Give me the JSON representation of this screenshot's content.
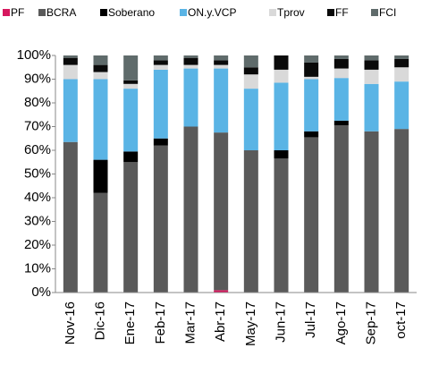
{
  "chart_data": {
    "type": "stacked_bar",
    "categories": [
      "Nov-16",
      "Dic-16",
      "Ene-17",
      "Feb-17",
      "Mar-17",
      "Abr-17",
      "May-17",
      "Jun-17",
      "Jul-17",
      "Ago-17",
      "Sep-17",
      "oct-17"
    ],
    "series": [
      {
        "name": "PF",
        "color": "#d6185e",
        "values": [
          0,
          0,
          0,
          0,
          0,
          1,
          0,
          0,
          0,
          0,
          0,
          0
        ]
      },
      {
        "name": "BCRA",
        "color": "#5a5a5a",
        "values": [
          63.5,
          42,
          55,
          62,
          70,
          66.5,
          60,
          56.5,
          65.5,
          70.5,
          68,
          69
        ]
      },
      {
        "name": "Soberano",
        "color": "#000000",
        "values": [
          0,
          14,
          4.5,
          3,
          0,
          0,
          0,
          3.5,
          2.5,
          2,
          0,
          0
        ]
      },
      {
        "name": "ON.y.VCP",
        "color": "#5ab4e5",
        "values": [
          26.5,
          34,
          26.5,
          29,
          24.5,
          27,
          26,
          28.5,
          22,
          18,
          20,
          20
        ]
      },
      {
        "name": "Tprov",
        "color": "#d9d9d9",
        "values": [
          6,
          3,
          2,
          2,
          1.5,
          1.5,
          6,
          5.5,
          1,
          4,
          6,
          6
        ]
      },
      {
        "name": "FF",
        "color": "#0a0a0a",
        "values": [
          3,
          3,
          1.5,
          2,
          3,
          2,
          3,
          6,
          6,
          4,
          4,
          3.5
        ]
      },
      {
        "name": "FCI",
        "color": "#5f6b6b",
        "values": [
          1,
          4,
          10.5,
          2,
          1,
          2,
          5,
          0,
          3,
          1.5,
          2,
          1.5
        ]
      }
    ],
    "ylim": [
      0,
      100
    ],
    "yticks": [
      {
        "value": 0,
        "label": "0%"
      },
      {
        "value": 10,
        "label": "10%"
      },
      {
        "value": 20,
        "label": "20%"
      },
      {
        "value": 30,
        "label": "30%"
      },
      {
        "value": 40,
        "label": "40%"
      },
      {
        "value": 50,
        "label": "50%"
      },
      {
        "value": 60,
        "label": "60%"
      },
      {
        "value": 70,
        "label": "70%"
      },
      {
        "value": 80,
        "label": "80%"
      },
      {
        "value": 90,
        "label": "90%"
      },
      {
        "value": 100,
        "label": "100%"
      }
    ],
    "legend": "top"
  }
}
